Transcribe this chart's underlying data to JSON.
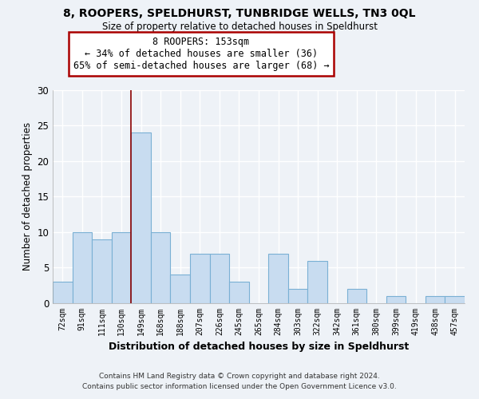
{
  "title": "8, ROOPERS, SPELDHURST, TUNBRIDGE WELLS, TN3 0QL",
  "subtitle": "Size of property relative to detached houses in Speldhurst",
  "xlabel": "Distribution of detached houses by size in Speldhurst",
  "ylabel": "Number of detached properties",
  "footer_line1": "Contains HM Land Registry data © Crown copyright and database right 2024.",
  "footer_line2": "Contains public sector information licensed under the Open Government Licence v3.0.",
  "categories": [
    "72sqm",
    "91sqm",
    "111sqm",
    "130sqm",
    "149sqm",
    "168sqm",
    "188sqm",
    "207sqm",
    "226sqm",
    "245sqm",
    "265sqm",
    "284sqm",
    "303sqm",
    "322sqm",
    "342sqm",
    "361sqm",
    "380sqm",
    "399sqm",
    "419sqm",
    "438sqm",
    "457sqm"
  ],
  "values": [
    3,
    10,
    9,
    10,
    24,
    10,
    4,
    7,
    7,
    3,
    0,
    7,
    2,
    6,
    0,
    2,
    0,
    1,
    0,
    1,
    1
  ],
  "highlight_index": 4,
  "bar_face_color": "#c8dcf0",
  "bar_edge_color": "#7ab0d4",
  "highlight_line_color": "#8b0000",
  "ylim": [
    0,
    30
  ],
  "yticks": [
    0,
    5,
    10,
    15,
    20,
    25,
    30
  ],
  "annotation_title": "8 ROOPERS: 153sqm",
  "annotation_line1": "← 34% of detached houses are smaller (36)",
  "annotation_line2": "65% of semi-detached houses are larger (68) →",
  "annotation_box_color": "#ffffff",
  "annotation_border_color": "#aa0000",
  "bg_color": "#eef2f7",
  "grid_color": "#ffffff",
  "plot_bg_color": "#eef2f7"
}
